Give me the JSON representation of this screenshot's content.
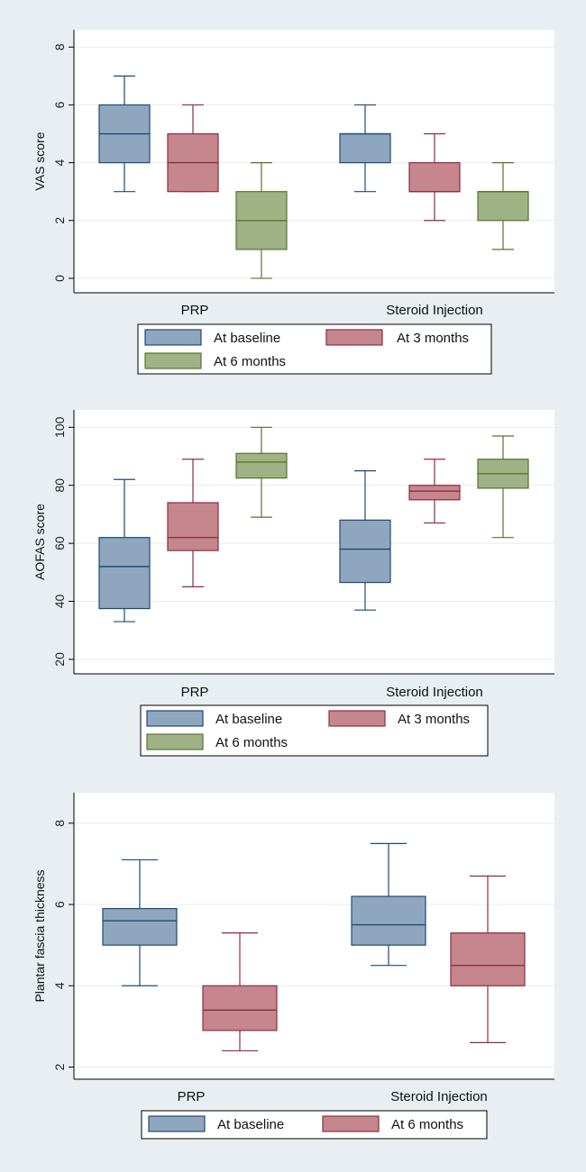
{
  "colors": {
    "page_background": "#e8eef1",
    "plot_background": "#ffffff",
    "gridline": "#e6ecef",
    "baseline_fill": "#8fa6bf",
    "baseline_stroke": "#1f4a73",
    "m3_fill": "#c5868d",
    "m3_stroke": "#8c2f3b",
    "m6_fill": "#9fb285",
    "m6_stroke": "#56742f"
  },
  "chart_data": [
    {
      "type": "box",
      "ylabel": "VAS score",
      "ylim": [
        -0.5,
        8.6
      ],
      "yticks": [
        0,
        2,
        4,
        6,
        8
      ],
      "grid": true,
      "categories": [
        "PRP",
        "Steroid Injection"
      ],
      "series": [
        {
          "name": "At baseline",
          "color_key": "baseline",
          "boxes": [
            {
              "category": "PRP",
              "min": 3,
              "q1": 4,
              "median": 5,
              "q3": 6,
              "max": 7
            },
            {
              "category": "Steroid Injection",
              "min": 3,
              "q1": 4,
              "median": 5,
              "q3": 5,
              "max": 6
            }
          ]
        },
        {
          "name": "At  3 months",
          "color_key": "m3",
          "boxes": [
            {
              "category": "PRP",
              "min": 3,
              "q1": 3,
              "median": 4,
              "q3": 5,
              "max": 6
            },
            {
              "category": "Steroid Injection",
              "min": 2,
              "q1": 3,
              "median": 3,
              "q3": 4,
              "max": 5
            }
          ]
        },
        {
          "name": "At 6 months",
          "color_key": "m6",
          "boxes": [
            {
              "category": "PRP",
              "min": 0,
              "q1": 1,
              "median": 2,
              "q3": 3,
              "max": 4
            },
            {
              "category": "Steroid Injection",
              "min": 1,
              "q1": 2,
              "median": 3,
              "q3": 3,
              "max": 4
            }
          ]
        }
      ],
      "legend": [
        "At baseline",
        "At  3 months",
        "At 6 months"
      ]
    },
    {
      "type": "box",
      "ylabel": "AOFAS score",
      "ylim": [
        15,
        106
      ],
      "yticks": [
        20,
        40,
        60,
        80,
        100
      ],
      "grid": true,
      "categories": [
        "PRP",
        "Steroid Injection"
      ],
      "series": [
        {
          "name": "At baseline",
          "color_key": "baseline",
          "boxes": [
            {
              "category": "PRP",
              "min": 33,
              "q1": 37.5,
              "median": 52,
              "q3": 62,
              "max": 82
            },
            {
              "category": "Steroid Injection",
              "min": 37,
              "q1": 46.5,
              "median": 58,
              "q3": 68,
              "max": 85
            }
          ]
        },
        {
          "name": "At 3 months",
          "color_key": "m3",
          "boxes": [
            {
              "category": "PRP",
              "min": 45,
              "q1": 57.5,
              "median": 62,
              "q3": 74,
              "max": 89
            },
            {
              "category": "Steroid Injection",
              "min": 67,
              "q1": 75,
              "median": 78,
              "q3": 80,
              "max": 89
            }
          ]
        },
        {
          "name": "At 6 months",
          "color_key": "m6",
          "boxes": [
            {
              "category": "PRP",
              "min": 69,
              "q1": 82.5,
              "median": 88,
              "q3": 91,
              "max": 100
            },
            {
              "category": "Steroid Injection",
              "min": 62,
              "q1": 79,
              "median": 84,
              "q3": 89,
              "max": 97
            }
          ]
        }
      ],
      "legend": [
        "At baseline",
        "At 3 months",
        "At 6 months"
      ]
    },
    {
      "type": "box",
      "ylabel": "Plantar fascia thickness",
      "ylim": [
        1.7,
        8.75
      ],
      "yticks": [
        2,
        4,
        6,
        8
      ],
      "grid": true,
      "categories": [
        "PRP",
        "Steroid Injection"
      ],
      "series": [
        {
          "name": "At baseline",
          "color_key": "baseline",
          "boxes": [
            {
              "category": "PRP",
              "min": 4.0,
              "q1": 5.0,
              "median": 5.6,
              "q3": 5.9,
              "max": 7.1
            },
            {
              "category": "Steroid Injection",
              "min": 4.5,
              "q1": 5.0,
              "median": 5.5,
              "q3": 6.2,
              "max": 7.5
            }
          ]
        },
        {
          "name": "At  6 months",
          "color_key": "m3",
          "boxes": [
            {
              "category": "PRP",
              "min": 2.4,
              "q1": 2.9,
              "median": 3.4,
              "q3": 4.0,
              "max": 5.3
            },
            {
              "category": "Steroid Injection",
              "min": 2.6,
              "q1": 4.0,
              "median": 4.5,
              "q3": 5.3,
              "max": 6.7
            }
          ]
        }
      ],
      "legend": [
        "At baseline",
        "At  6 months"
      ]
    }
  ]
}
